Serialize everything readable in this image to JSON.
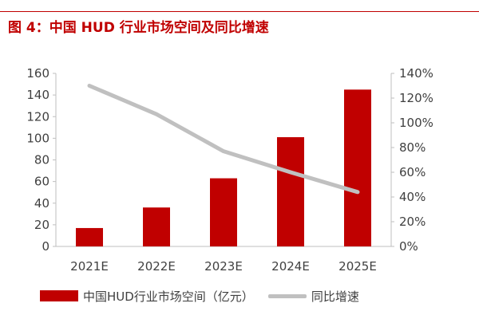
{
  "figure_title": "图 4：中国 HUD 行业市场空间及同比增速",
  "colors": {
    "title": "#c00000",
    "bar": "#c00000",
    "line": "#c0c0c0",
    "axis_text": "#404040",
    "axis_line": "#bfbfbf"
  },
  "chart_data": {
    "type": "bar",
    "categories": [
      "2021E",
      "2022E",
      "2023E",
      "2024E",
      "2025E"
    ],
    "series": [
      {
        "name": "中国HUD行业市场空间（亿元）",
        "type": "bar",
        "axis": "left",
        "values": [
          17,
          36,
          63,
          101,
          145
        ]
      },
      {
        "name": "同比增速",
        "type": "line",
        "axis": "right",
        "values": [
          1.3,
          1.07,
          0.77,
          0.6,
          0.44
        ]
      }
    ],
    "y_left": {
      "ylim": [
        0,
        160
      ],
      "ticks": [
        "0",
        "20",
        "40",
        "60",
        "80",
        "100",
        "120",
        "140",
        "160"
      ]
    },
    "y_right": {
      "ylim": [
        0,
        1.4
      ],
      "ticks": [
        "0%",
        "20%",
        "40%",
        "60%",
        "80%",
        "100%",
        "120%",
        "140%"
      ]
    },
    "grid": false,
    "legend_position": "bottom"
  }
}
